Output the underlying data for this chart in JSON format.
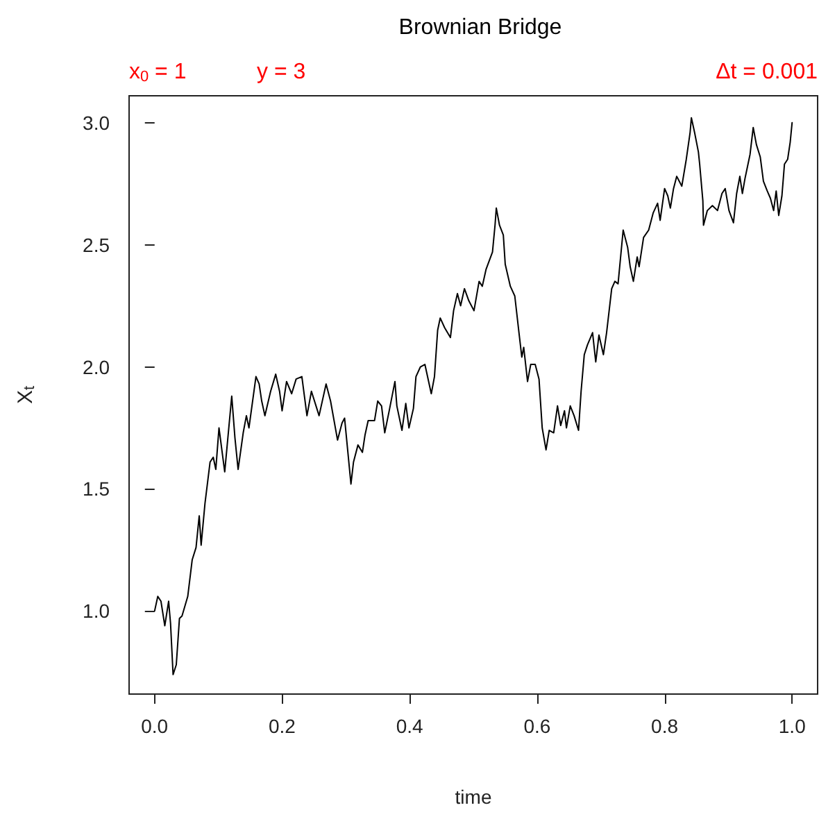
{
  "chart_data": {
    "type": "line",
    "title": "Brownian Bridge",
    "xlabel": "time",
    "ylabel": "X$_{t}$",
    "annotations": [
      "x$_{0}$ = 1",
      "y = 3",
      "Δt = 0.001"
    ],
    "color": "#000000",
    "xlim": [
      -0.04,
      1.04
    ],
    "ylim": [
      0.66,
      3.11
    ],
    "xticks": [
      {
        "value": 0,
        "label": "0.0"
      },
      0.2,
      0.4,
      0.6,
      0.8,
      {
        "value": 1,
        "label": "1.0"
      }
    ],
    "yticks": [
      {
        "value": 1,
        "label": "1.0"
      },
      1.5,
      {
        "value": 2,
        "label": "2.0"
      },
      2.5,
      {
        "value": 3,
        "label": "3.0"
      }
    ],
    "x": [
      0,
      0.005,
      0.01,
      0.016,
      0.022,
      0.025,
      0.029,
      0.034,
      0.039,
      0.043,
      0.052,
      0.059,
      0.065,
      0.07,
      0.073,
      0.079,
      0.087,
      0.092,
      0.096,
      0.101,
      0.11,
      0.121,
      0.126,
      0.131,
      0.139,
      0.144,
      0.148,
      0.159,
      0.164,
      0.168,
      0.173,
      0.182,
      0.19,
      0.196,
      0.2,
      0.207,
      0.215,
      0.222,
      0.231,
      0.239,
      0.246,
      0.258,
      0.269,
      0.276,
      0.287,
      0.294,
      0.298,
      0.308,
      0.312,
      0.319,
      0.326,
      0.33,
      0.335,
      0.345,
      0.35,
      0.356,
      0.361,
      0.368,
      0.377,
      0.38,
      0.388,
      0.394,
      0.399,
      0.406,
      0.41,
      0.417,
      0.424,
      0.434,
      0.439,
      0.444,
      0.448,
      0.455,
      0.464,
      0.469,
      0.475,
      0.48,
      0.486,
      0.493,
      0.501,
      0.509,
      0.514,
      0.52,
      0.53,
      0.534,
      0.536,
      0.541,
      0.547,
      0.55,
      0.558,
      0.565,
      0.572,
      0.576,
      0.579,
      0.585,
      0.59,
      0.597,
      0.603,
      0.608,
      0.614,
      0.619,
      0.626,
      0.632,
      0.637,
      0.643,
      0.646,
      0.652,
      0.658,
      0.665,
      0.669,
      0.674,
      0.679,
      0.687,
      0.692,
      0.697,
      0.704,
      0.709,
      0.717,
      0.722,
      0.727,
      0.735,
      0.742,
      0.746,
      0.751,
      0.757,
      0.76,
      0.767,
      0.775,
      0.782,
      0.789,
      0.793,
      0.8,
      0.805,
      0.809,
      0.814,
      0.819,
      0.827,
      0.834,
      0.84,
      0.842,
      0.847,
      0.853,
      0.855,
      0.86,
      0.861,
      0.867,
      0.875,
      0.883,
      0.89,
      0.895,
      0.901,
      0.908,
      0.913,
      0.918,
      0.922,
      0.926,
      0.934,
      0.939,
      0.944,
      0.95,
      0.955,
      0.961,
      0.966,
      0.971,
      0.975,
      0.979,
      0.984,
      0.988,
      0.993,
      0.997,
      1
    ],
    "values": [
      1,
      1.06,
      1.04,
      0.94,
      1.04,
      0.95,
      0.74,
      0.78,
      0.97,
      0.98,
      1.06,
      1.21,
      1.26,
      1.39,
      1.27,
      1.44,
      1.61,
      1.63,
      1.58,
      1.75,
      1.57,
      1.88,
      1.71,
      1.58,
      1.73,
      1.8,
      1.75,
      1.96,
      1.93,
      1.86,
      1.8,
      1.9,
      1.97,
      1.9,
      1.82,
      1.94,
      1.89,
      1.95,
      1.96,
      1.8,
      1.9,
      1.8,
      1.93,
      1.86,
      1.7,
      1.77,
      1.79,
      1.52,
      1.61,
      1.68,
      1.65,
      1.72,
      1.78,
      1.78,
      1.86,
      1.84,
      1.73,
      1.82,
      1.94,
      1.84,
      1.74,
      1.85,
      1.75,
      1.83,
      1.96,
      2,
      2.01,
      1.89,
      1.96,
      2.15,
      2.2,
      2.16,
      2.12,
      2.23,
      2.3,
      2.25,
      2.32,
      2.27,
      2.23,
      2.35,
      2.33,
      2.4,
      2.47,
      2.58,
      2.65,
      2.58,
      2.54,
      2.42,
      2.33,
      2.29,
      2.13,
      2.04,
      2.08,
      1.94,
      2.01,
      2.01,
      1.95,
      1.75,
      1.66,
      1.74,
      1.73,
      1.84,
      1.76,
      1.82,
      1.75,
      1.84,
      1.8,
      1.74,
      1.9,
      2.05,
      2.09,
      2.14,
      2.02,
      2.13,
      2.05,
      2.14,
      2.32,
      2.35,
      2.34,
      2.56,
      2.49,
      2.41,
      2.35,
      2.45,
      2.41,
      2.53,
      2.56,
      2.63,
      2.67,
      2.6,
      2.73,
      2.7,
      2.65,
      2.73,
      2.78,
      2.74,
      2.85,
      2.96,
      3.02,
      2.96,
      2.88,
      2.83,
      2.68,
      2.58,
      2.64,
      2.66,
      2.64,
      2.71,
      2.73,
      2.64,
      2.59,
      2.71,
      2.78,
      2.71,
      2.77,
      2.87,
      2.98,
      2.91,
      2.86,
      2.76,
      2.72,
      2.69,
      2.64,
      2.72,
      2.62,
      2.7,
      2.83,
      2.85,
      2.92,
      3
    ]
  }
}
